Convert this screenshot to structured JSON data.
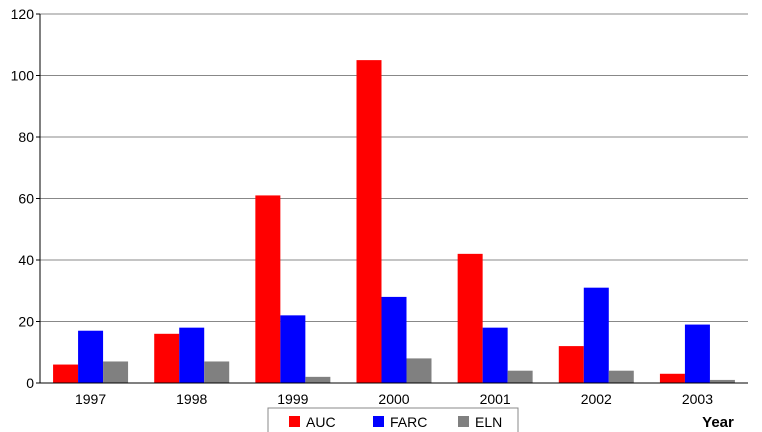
{
  "chart_data": {
    "type": "bar",
    "title": "",
    "xlabel": "Year",
    "ylabel": "",
    "categories": [
      "1997",
      "1998",
      "1999",
      "2000",
      "2001",
      "2002",
      "2003"
    ],
    "series": [
      {
        "name": "AUC",
        "color": "#ff0000",
        "values": [
          6,
          16,
          61,
          105,
          42,
          12,
          3
        ]
      },
      {
        "name": "FARC",
        "color": "#0000ff",
        "values": [
          17,
          18,
          22,
          28,
          18,
          31,
          19
        ]
      },
      {
        "name": "ELN",
        "color": "#808080",
        "values": [
          7,
          7,
          2,
          8,
          4,
          4,
          1
        ]
      }
    ],
    "ylim": [
      0,
      120
    ],
    "yticks": [
      0,
      20,
      40,
      60,
      80,
      100,
      120
    ],
    "grid": true,
    "legend": "bottom"
  }
}
